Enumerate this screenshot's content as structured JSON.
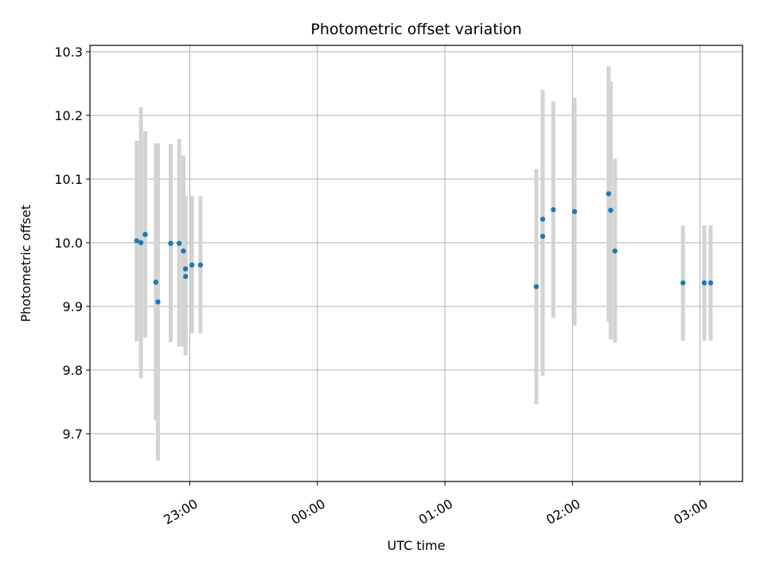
{
  "chart_data": {
    "type": "scatter",
    "title": "Photometric offset variation",
    "xlabel": "UTC time",
    "ylabel": "Photometric offset",
    "grid": true,
    "legend": "none",
    "colors": {
      "point": "#1f77b4",
      "errorbar": "#d3d3d3",
      "grid": "#b0b0b0"
    },
    "xlim": [
      "22:13",
      "03:20"
    ],
    "ylim": [
      9.625,
      10.31
    ],
    "x_ticks": [
      "23:00",
      "00:00",
      "01:00",
      "02:00",
      "03:00"
    ],
    "y_ticks": [
      "9.7",
      "9.8",
      "9.9",
      "10.0",
      "10.1",
      "10.2",
      "10.3"
    ],
    "points": [
      {
        "x": "22:35",
        "y": 10.003,
        "yerr_low": 9.845,
        "yerr_high": 10.16
      },
      {
        "x": "22:37",
        "y": 10.0,
        "yerr_low": 9.787,
        "yerr_high": 10.213
      },
      {
        "x": "22:39",
        "y": 10.013,
        "yerr_low": 9.851,
        "yerr_high": 10.175
      },
      {
        "x": "22:44",
        "y": 9.938,
        "yerr_low": 9.721,
        "yerr_high": 10.156
      },
      {
        "x": "22:45",
        "y": 9.907,
        "yerr_low": 9.658,
        "yerr_high": 10.156
      },
      {
        "x": "22:51",
        "y": 9.999,
        "yerr_low": 9.844,
        "yerr_high": 10.155
      },
      {
        "x": "22:55",
        "y": 9.999,
        "yerr_low": 9.837,
        "yerr_high": 10.163
      },
      {
        "x": "22:57",
        "y": 9.987,
        "yerr_low": 9.837,
        "yerr_high": 10.137
      },
      {
        "x": "22:58",
        "y": 9.947,
        "yerr_low": 9.823,
        "yerr_high": 10.073
      },
      {
        "x": "22:58",
        "y": 9.959,
        "yerr_low": 9.845,
        "yerr_high": 10.073
      },
      {
        "x": "23:01",
        "y": 9.965,
        "yerr_low": 9.858,
        "yerr_high": 10.073
      },
      {
        "x": "23:05",
        "y": 9.965,
        "yerr_low": 9.858,
        "yerr_high": 10.073
      },
      {
        "x": "01:43",
        "y": 9.931,
        "yerr_low": 9.746,
        "yerr_high": 10.116
      },
      {
        "x": "01:46",
        "y": 10.01,
        "yerr_low": 9.791,
        "yerr_high": 10.23
      },
      {
        "x": "01:46",
        "y": 10.037,
        "yerr_low": 9.834,
        "yerr_high": 10.24
      },
      {
        "x": "01:51",
        "y": 10.052,
        "yerr_low": 9.882,
        "yerr_high": 10.222
      },
      {
        "x": "02:01",
        "y": 10.049,
        "yerr_low": 9.87,
        "yerr_high": 10.228
      },
      {
        "x": "02:17",
        "y": 10.077,
        "yerr_low": 9.876,
        "yerr_high": 10.277
      },
      {
        "x": "02:18",
        "y": 10.051,
        "yerr_low": 9.848,
        "yerr_high": 10.253
      },
      {
        "x": "02:20",
        "y": 9.987,
        "yerr_low": 9.843,
        "yerr_high": 10.132
      },
      {
        "x": "02:52",
        "y": 9.937,
        "yerr_low": 9.846,
        "yerr_high": 10.027
      },
      {
        "x": "03:02",
        "y": 9.937,
        "yerr_low": 9.846,
        "yerr_high": 10.027
      },
      {
        "x": "03:05",
        "y": 9.937,
        "yerr_low": 9.846,
        "yerr_high": 10.027
      }
    ]
  }
}
